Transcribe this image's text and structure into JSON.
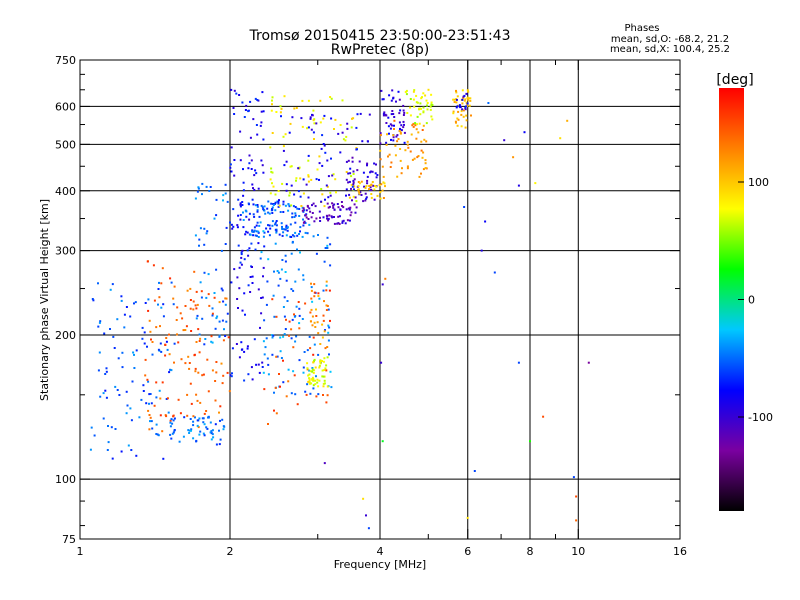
{
  "chart_data": {
    "type": "scatter",
    "title": "Tromsø 20150415 23:50:00-23:51:43",
    "subtitle": "RwPretec (8p)",
    "xlabel": "Frequency [MHz]",
    "ylabel": "Stationary phase Virtual Height [km]",
    "x_scale": "log",
    "y_scale": "log",
    "xlim": [
      1,
      16
    ],
    "ylim": [
      75,
      750
    ],
    "x_ticks": [
      1,
      2,
      4,
      6,
      8,
      10,
      16
    ],
    "x_tick_labels": [
      "1",
      "2",
      "4",
      "6",
      "8",
      "10",
      "16"
    ],
    "x_minor_ticks": [
      3,
      5,
      7,
      9
    ],
    "y_ticks": [
      75,
      100,
      200,
      300,
      400,
      500,
      600,
      750
    ],
    "y_tick_labels": [
      "75",
      "100",
      "200",
      "300",
      "400",
      "500",
      "600",
      "750"
    ],
    "y_minor_ticks": [
      80,
      90,
      150,
      250,
      350,
      450,
      550,
      650,
      700
    ],
    "grid": true,
    "grid_x": [
      2,
      4,
      6,
      8,
      10
    ],
    "grid_y": [
      100,
      200,
      300,
      400,
      500,
      600
    ],
    "stats": {
      "heading": "Phases",
      "line1": "mean, sd,O: -68.2, 21.2",
      "line2": "mean, sd,X: 100.4, 25.2"
    },
    "colorbar": {
      "label": "[deg]",
      "range": [
        -180,
        180
      ],
      "ticks": [
        100,
        0,
        -100
      ],
      "tick_labels": [
        "100",
        "0",
        "-100"
      ],
      "colormap": [
        "#000000",
        "#7a00a0",
        "#0000ff",
        "#00c8ff",
        "#00ff00",
        "#ffff00",
        "#ff8000",
        "#ff0000"
      ]
    },
    "clusters": [
      {
        "x": [
          1.05,
          1.55
        ],
        "y": [
          110,
          260
        ],
        "phase": -55,
        "n": 110
      },
      {
        "x": [
          1.35,
          1.75
        ],
        "y": [
          125,
          290
        ],
        "phase": 145,
        "n": 70
      },
      {
        "x": [
          1.5,
          1.95
        ],
        "y": [
          118,
          135
        ],
        "phase": -50,
        "n": 60
      },
      {
        "x": [
          1.6,
          2.0
        ],
        "y": [
          135,
          250
        ],
        "phase": 140,
        "n": 50
      },
      {
        "x": [
          1.7,
          1.98
        ],
        "y": [
          190,
          420
        ],
        "phase": -50,
        "n": 60
      },
      {
        "x": [
          2.0,
          2.35
        ],
        "y": [
          160,
          650
        ],
        "phase": -80,
        "n": 140
      },
      {
        "x": [
          2.1,
          2.9
        ],
        "y": [
          320,
          380
        ],
        "phase": -55,
        "n": 130
      },
      {
        "x": [
          2.3,
          3.2
        ],
        "y": [
          150,
          330
        ],
        "phase": -45,
        "n": 120
      },
      {
        "x": [
          2.3,
          3.2
        ],
        "y": [
          130,
          250
        ],
        "phase": 150,
        "n": 45
      },
      {
        "x": [
          2.4,
          3.6
        ],
        "y": [
          370,
          640
        ],
        "phase": 80,
        "n": 90
      },
      {
        "x": [
          2.5,
          3.9
        ],
        "y": [
          380,
          580
        ],
        "phase": -85,
        "n": 70
      },
      {
        "x": [
          2.8,
          3.6
        ],
        "y": [
          340,
          380
        ],
        "phase": -110,
        "n": 70
      },
      {
        "x": [
          3.4,
          4.0
        ],
        "y": [
          380,
          470
        ],
        "phase": -100,
        "n": 45
      },
      {
        "x": [
          3.6,
          4.1
        ],
        "y": [
          385,
          420
        ],
        "phase": 105,
        "n": 30
      },
      {
        "x": [
          2.85,
          3.15
        ],
        "y": [
          155,
          180
        ],
        "phase": 75,
        "n": 55
      },
      {
        "x": [
          2.9,
          3.15
        ],
        "y": [
          180,
          260
        ],
        "phase": 120,
        "n": 25
      },
      {
        "x": [
          4.0,
          4.5
        ],
        "y": [
          500,
          650
        ],
        "phase": -95,
        "n": 55
      },
      {
        "x": [
          4.0,
          5.0
        ],
        "y": [
          420,
          560
        ],
        "phase": 120,
        "n": 60
      },
      {
        "x": [
          4.5,
          5.1
        ],
        "y": [
          550,
          650
        ],
        "phase": 70,
        "n": 45
      },
      {
        "x": [
          5.6,
          6.1
        ],
        "y": [
          540,
          650
        ],
        "phase": 105,
        "n": 45
      },
      {
        "x": [
          5.7,
          6.0
        ],
        "y": [
          580,
          640
        ],
        "phase": -90,
        "n": 15
      }
    ],
    "sparse_points": [
      {
        "x": 4.05,
        "y": 255,
        "phase": -100
      },
      {
        "x": 4.1,
        "y": 262,
        "phase": 130
      },
      {
        "x": 6.4,
        "y": 300,
        "phase": -90
      },
      {
        "x": 6.5,
        "y": 345,
        "phase": -80
      },
      {
        "x": 6.8,
        "y": 270,
        "phase": -60
      },
      {
        "x": 6.6,
        "y": 610,
        "phase": -50
      },
      {
        "x": 7.1,
        "y": 510,
        "phase": -100
      },
      {
        "x": 7.4,
        "y": 470,
        "phase": 120
      },
      {
        "x": 7.6,
        "y": 410,
        "phase": -90
      },
      {
        "x": 7.6,
        "y": 175,
        "phase": -60
      },
      {
        "x": 7.8,
        "y": 530,
        "phase": -80
      },
      {
        "x": 8.2,
        "y": 415,
        "phase": 80
      },
      {
        "x": 8.5,
        "y": 135,
        "phase": 150
      },
      {
        "x": 9.2,
        "y": 515,
        "phase": 90
      },
      {
        "x": 9.5,
        "y": 560,
        "phase": 110
      },
      {
        "x": 8.0,
        "y": 120,
        "phase": 30
      },
      {
        "x": 10.5,
        "y": 175,
        "phase": -130
      },
      {
        "x": 9.8,
        "y": 101,
        "phase": -60
      },
      {
        "x": 9.9,
        "y": 92,
        "phase": 150
      },
      {
        "x": 9.9,
        "y": 82,
        "phase": 140
      },
      {
        "x": 6.2,
        "y": 104,
        "phase": -60
      },
      {
        "x": 6.0,
        "y": 83,
        "phase": 90
      },
      {
        "x": 5.9,
        "y": 370,
        "phase": -60
      },
      {
        "x": 3.1,
        "y": 108,
        "phase": -110
      },
      {
        "x": 3.7,
        "y": 91,
        "phase": 90
      },
      {
        "x": 3.75,
        "y": 84,
        "phase": -100
      },
      {
        "x": 3.8,
        "y": 79,
        "phase": -60
      },
      {
        "x": 4.02,
        "y": 175,
        "phase": -100
      },
      {
        "x": 4.05,
        "y": 120,
        "phase": 20
      }
    ]
  }
}
